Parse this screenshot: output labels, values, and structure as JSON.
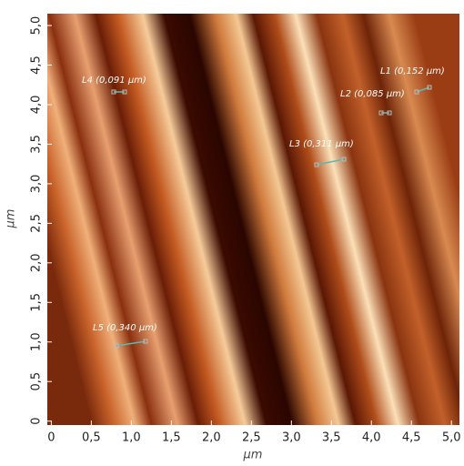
{
  "chart_data": {
    "type": "image",
    "xlabel": "µm",
    "ylabel": "µm",
    "xlim": [
      -0.05,
      5.1
    ],
    "ylim": [
      -0.05,
      5.15
    ],
    "xticks": [
      0,
      {
        "value": 0.5,
        "label": "0,5"
      },
      {
        "value": 1.0,
        "label": "1,0"
      },
      {
        "value": 1.5,
        "label": "1,5"
      },
      {
        "value": 2.0,
        "label": "2,0"
      },
      {
        "value": 2.5,
        "label": "2,5"
      },
      {
        "value": 3.0,
        "label": "3,0"
      },
      {
        "value": 3.5,
        "label": "3,5"
      },
      {
        "value": 4.0,
        "label": "4,0"
      },
      {
        "value": 4.5,
        "label": "4,5"
      },
      {
        "value": 5.0,
        "label": "5,0"
      }
    ],
    "yticks": [
      0,
      {
        "value": 0.5,
        "label": "0,5"
      },
      {
        "value": 1.0,
        "label": "1,0"
      },
      {
        "value": 1.5,
        "label": "1,5"
      },
      {
        "value": 2.0,
        "label": "2,0"
      },
      {
        "value": 2.5,
        "label": "2,5"
      },
      {
        "value": 3.0,
        "label": "3,0"
      },
      {
        "value": 3.5,
        "label": "3,5"
      },
      {
        "value": 4.0,
        "label": "4,0"
      },
      {
        "value": 4.5,
        "label": "4,5"
      },
      {
        "value": 5.0,
        "label": "5,0"
      }
    ],
    "annotations": [
      "L1 (0,152 µm)",
      "L2 (0,085 µm)",
      "L3 (0,311 µm)",
      "L4 (0,091 µm)",
      "L5 (0,340 µm)"
    ]
  }
}
